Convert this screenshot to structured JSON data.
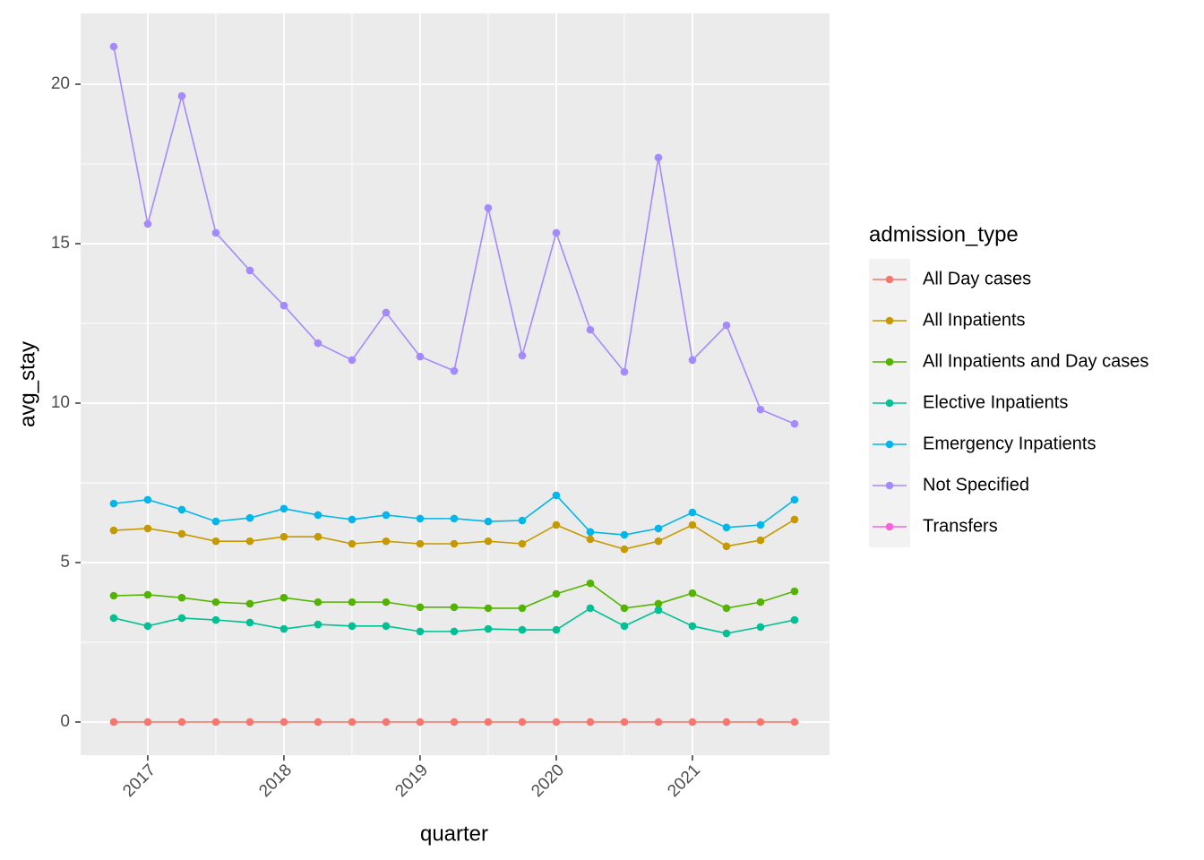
{
  "chart_data": {
    "type": "line",
    "x": [
      2016.75,
      2017,
      2017.25,
      2017.5,
      2017.75,
      2018,
      2018.25,
      2018.5,
      2018.75,
      2019,
      2019.25,
      2019.5,
      2019.75,
      2020,
      2020.25,
      2020.5,
      2020.75,
      2021,
      2021.25,
      2021.5,
      2021.75
    ],
    "xlabel": "quarter",
    "ylabel": "avg_stay",
    "legend_title": "admission_type",
    "xlim": [
      2016.507,
      2022.007
    ],
    "xticks": [
      2017,
      2018,
      2019,
      2020,
      2021
    ],
    "ylim": [
      -1.04,
      22.22
    ],
    "yticks": [
      0,
      5,
      10,
      15,
      20
    ],
    "grid": true,
    "legend": "right",
    "series": [
      {
        "name": "All Day cases",
        "color": "#F8766D",
        "values": [
          0,
          0,
          0,
          0,
          0,
          0,
          0,
          0,
          0,
          0,
          0,
          0,
          0,
          0,
          0,
          0,
          0,
          0,
          0,
          0,
          0
        ]
      },
      {
        "name": "All Inpatients",
        "color": "#C49A00",
        "values": [
          6.01,
          6.07,
          5.9,
          5.67,
          5.67,
          5.81,
          5.81,
          5.59,
          5.67,
          5.59,
          5.59,
          5.67,
          5.59,
          6.18,
          5.73,
          5.42,
          5.67,
          6.18,
          5.51,
          5.7,
          6.35
        ]
      },
      {
        "name": "All Inpatients and Day cases",
        "color": "#53B400",
        "values": [
          3.96,
          3.99,
          3.9,
          3.76,
          3.71,
          3.9,
          3.76,
          3.76,
          3.76,
          3.6,
          3.6,
          3.57,
          3.57,
          4.02,
          4.35,
          3.57,
          3.71,
          4.04,
          3.57,
          3.76,
          4.1
        ]
      },
      {
        "name": "Elective Inpatients",
        "color": "#00C094",
        "values": [
          3.26,
          3.01,
          3.26,
          3.2,
          3.12,
          2.92,
          3.06,
          3.01,
          3.01,
          2.84,
          2.84,
          2.92,
          2.89,
          2.89,
          3.57,
          3.01,
          3.51,
          3.01,
          2.78,
          2.98,
          3.2
        ]
      },
      {
        "name": "Emergency Inpatients",
        "color": "#00B6EB",
        "values": [
          6.85,
          6.97,
          6.66,
          6.29,
          6.4,
          6.69,
          6.49,
          6.35,
          6.49,
          6.38,
          6.38,
          6.29,
          6.32,
          7.11,
          5.96,
          5.87,
          6.07,
          6.57,
          6.1,
          6.18,
          6.97
        ]
      },
      {
        "name": "Not Specified",
        "color": "#A58AFF",
        "values": [
          21.18,
          15.62,
          19.63,
          15.34,
          14.16,
          13.06,
          11.88,
          11.35,
          12.84,
          11.46,
          11.01,
          16.12,
          11.49,
          15.34,
          12.3,
          10.98,
          17.7,
          11.35,
          12.44,
          9.8,
          9.35
        ]
      },
      {
        "name": "Transfers",
        "color": "#FB61D7",
        "values": [
          null,
          null,
          null,
          null,
          null,
          null,
          null,
          null,
          null,
          null,
          null,
          null,
          null,
          null,
          null,
          null,
          null,
          null,
          null,
          null,
          null
        ]
      }
    ]
  }
}
